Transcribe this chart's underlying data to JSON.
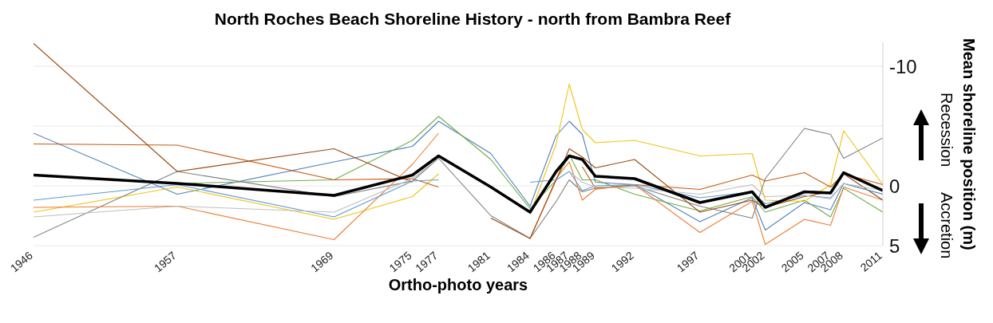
{
  "chart_data": {
    "type": "line",
    "title": "North Roches Beach Shoreline History - north from Bambra Reef",
    "xlabel": "Ortho-photo years",
    "ylabel": "Mean shoreline position (m)",
    "annotations": [
      "Recession",
      "Accretion"
    ],
    "x": [
      1946,
      1957,
      1969,
      1975,
      1977,
      1981,
      1984,
      1986,
      1987,
      1988,
      1989,
      1992,
      1997,
      2001,
      2002,
      2005,
      2007,
      2008,
      2011
    ],
    "xlim": [
      1946,
      2011
    ],
    "xticks": [
      1946,
      1957,
      1969,
      1975,
      1977,
      1981,
      1984,
      1986,
      1987,
      1988,
      1989,
      1992,
      1997,
      2001,
      2002,
      2005,
      2007,
      2008,
      2011
    ],
    "ylim": [
      5,
      -12
    ],
    "yticks": [
      -10,
      {
        "value": -5,
        "label": null
      },
      0,
      5
    ],
    "grid": "y",
    "legend": false,
    "marker": "none",
    "line_style": "solid",
    "series": [
      {
        "color": "#4f81bd",
        "values": [
          -4.4,
          0.7,
          -2.0,
          -3.3,
          -5.4,
          -2.7,
          1.7,
          -4.2,
          -5.4,
          -4.3,
          -0.3,
          -0.1,
          3.0,
          1.0,
          3.7,
          1.4,
          2.0,
          -0.2,
          0.7
        ]
      },
      {
        "color": "#70ad47",
        "values": [
          -0.9,
          -0.2,
          -0.5,
          -3.8,
          -5.8,
          -2.2,
          1.9,
          -0.5,
          -2.6,
          -0.5,
          -0.5,
          0.7,
          2.1,
          0.9,
          2.2,
          1.2,
          2.6,
          0.2,
          2.2
        ]
      },
      {
        "color": "#f2c314",
        "values": [
          2.2,
          0.1,
          2.8,
          0.9,
          -1.0,
          null,
          2.4,
          -3.5,
          -8.5,
          -4.7,
          -3.6,
          -3.8,
          -2.5,
          -2.7,
          1.2,
          1.3,
          -0.1,
          -4.6,
          -0.1
        ]
      },
      {
        "color": "#7f7f7f",
        "values": [
          4.3,
          -1.2,
          0.9,
          -0.4,
          -2.3,
          2.5,
          4.4,
          1.3,
          -0.5,
          0.5,
          0.2,
          0.0,
          1.7,
          2.7,
          -0.6,
          -4.8,
          -4.3,
          -2.3,
          -4.0
        ]
      },
      {
        "color": "#ed7d31",
        "values": [
          1.8,
          1.7,
          4.5,
          -1.8,
          -4.4,
          null,
          4.4,
          -0.6,
          -2.0,
          1.2,
          0.3,
          -0.1,
          3.9,
          1.3,
          4.9,
          2.8,
          3.3,
          0.1,
          1.2
        ]
      },
      {
        "color": "#c55a11",
        "values": [
          -3.5,
          -3.4,
          -0.5,
          -0.6,
          0.1,
          null,
          null,
          null,
          null,
          -1.6,
          0.2,
          -0.1,
          0.3,
          -0.9,
          -0.4,
          -1.1,
          0.1,
          -1.0,
          -0.1
        ]
      },
      {
        "color": "#9e480e",
        "values": [
          -11.9,
          -1.2,
          -3.1,
          -0.3,
          null,
          2.7,
          4.4,
          -0.5,
          -3.1,
          -2.4,
          -1.5,
          -2.2,
          2.2,
          1.2,
          1.8,
          0.9,
          0.5,
          -1.0,
          1.2
        ]
      },
      {
        "color": "#5b9bd5",
        "values": [
          1.2,
          -0.1,
          2.6,
          -0.4,
          -0.5,
          null,
          -0.3,
          -0.5,
          -1.2,
          0.4,
          0.0,
          -0.1,
          1.0,
          0.5,
          1.5,
          0.8,
          1.0,
          -0.2,
          0.7
        ]
      },
      {
        "color": "#bfbfbf",
        "values": [
          2.6,
          1.7,
          2.2,
          -0.6,
          -2.3,
          null,
          null,
          null,
          -1.2,
          -0.3,
          0.1,
          0.2,
          0.7,
          -0.1,
          0.9,
          0.8,
          1.1,
          -0.2,
          0.4
        ]
      },
      {
        "color": "#000000",
        "values": [
          -0.9,
          -0.2,
          0.8,
          -0.9,
          -2.5,
          0.1,
          2.2,
          -1.2,
          -2.5,
          -2.2,
          -0.8,
          -0.6,
          1.4,
          0.5,
          1.8,
          0.5,
          0.6,
          -1.1,
          0.4
        ]
      }
    ]
  }
}
